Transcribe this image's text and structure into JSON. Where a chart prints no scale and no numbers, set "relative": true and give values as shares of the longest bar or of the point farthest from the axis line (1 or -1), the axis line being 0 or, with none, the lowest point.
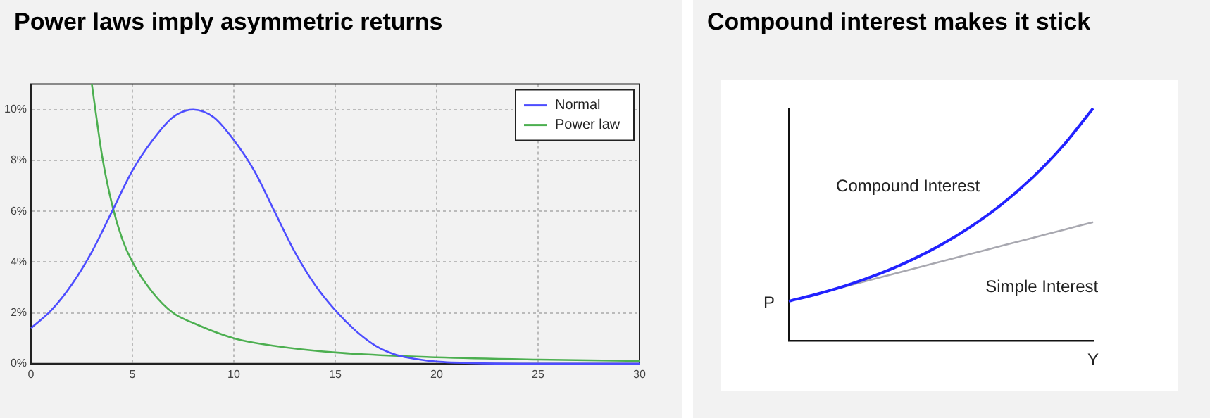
{
  "chart_data": [
    {
      "type": "line",
      "title": "Power laws imply asymmetric returns",
      "xlim": [
        0,
        30
      ],
      "xticks": [
        0,
        5,
        10,
        15,
        20,
        25,
        30
      ],
      "ylim": [
        0,
        11
      ],
      "yticks": [
        {
          "value": 0,
          "label": "0%"
        },
        {
          "value": 2,
          "label": "2%"
        },
        {
          "value": 4,
          "label": "4%"
        },
        {
          "value": 6,
          "label": "6%"
        },
        {
          "value": 8,
          "label": "8%"
        },
        {
          "value": 10,
          "label": "10%"
        }
      ],
      "grid": true,
      "legend": "top right",
      "series": [
        {
          "name": "Normal",
          "color": "#4d4dff",
          "x": [
            0,
            1,
            2,
            3,
            4,
            5,
            6,
            7,
            8,
            9,
            10,
            11,
            12,
            13,
            14,
            15,
            16,
            17,
            18,
            19,
            20,
            22,
            25,
            30
          ],
          "values": [
            1.4,
            2.1,
            3.1,
            4.4,
            6.0,
            7.6,
            8.8,
            9.7,
            10,
            9.7,
            8.8,
            7.6,
            6.0,
            4.4,
            3.1,
            2.1,
            1.3,
            0.7,
            0.35,
            0.18,
            0.08,
            0.02,
            0,
            0
          ]
        },
        {
          "name": "Power law",
          "color": "#4caf50",
          "x": [
            3,
            3.5,
            4,
            4.5,
            5,
            6,
            7,
            8,
            10,
            12,
            15,
            20,
            25,
            30
          ],
          "values": [
            11,
            8.2,
            6.25,
            4.9,
            4.0,
            2.8,
            2.0,
            1.6,
            1.0,
            0.7,
            0.44,
            0.25,
            0.16,
            0.11
          ]
        }
      ]
    },
    {
      "type": "line",
      "title": "Compound interest makes it stick",
      "relative": true,
      "xlabel": "Y",
      "ylabel": "P",
      "categories": [
        null,
        null,
        null,
        null,
        null,
        null,
        null,
        null,
        null,
        null,
        null
      ],
      "legend": false,
      "series": [
        {
          "name": "Compound Interest",
          "color": "#2222ff",
          "values": [
            0.17,
            0.203,
            0.242,
            0.289,
            0.345,
            0.412,
            0.492,
            0.587,
            0.701,
            0.837,
            1.0
          ]
        },
        {
          "name": "Simple Interest",
          "color": "#a8a8b0",
          "values": [
            0.17,
            0.204,
            0.238,
            0.272,
            0.306,
            0.34,
            0.374,
            0.408,
            0.442,
            0.476,
            0.51
          ]
        }
      ]
    }
  ]
}
